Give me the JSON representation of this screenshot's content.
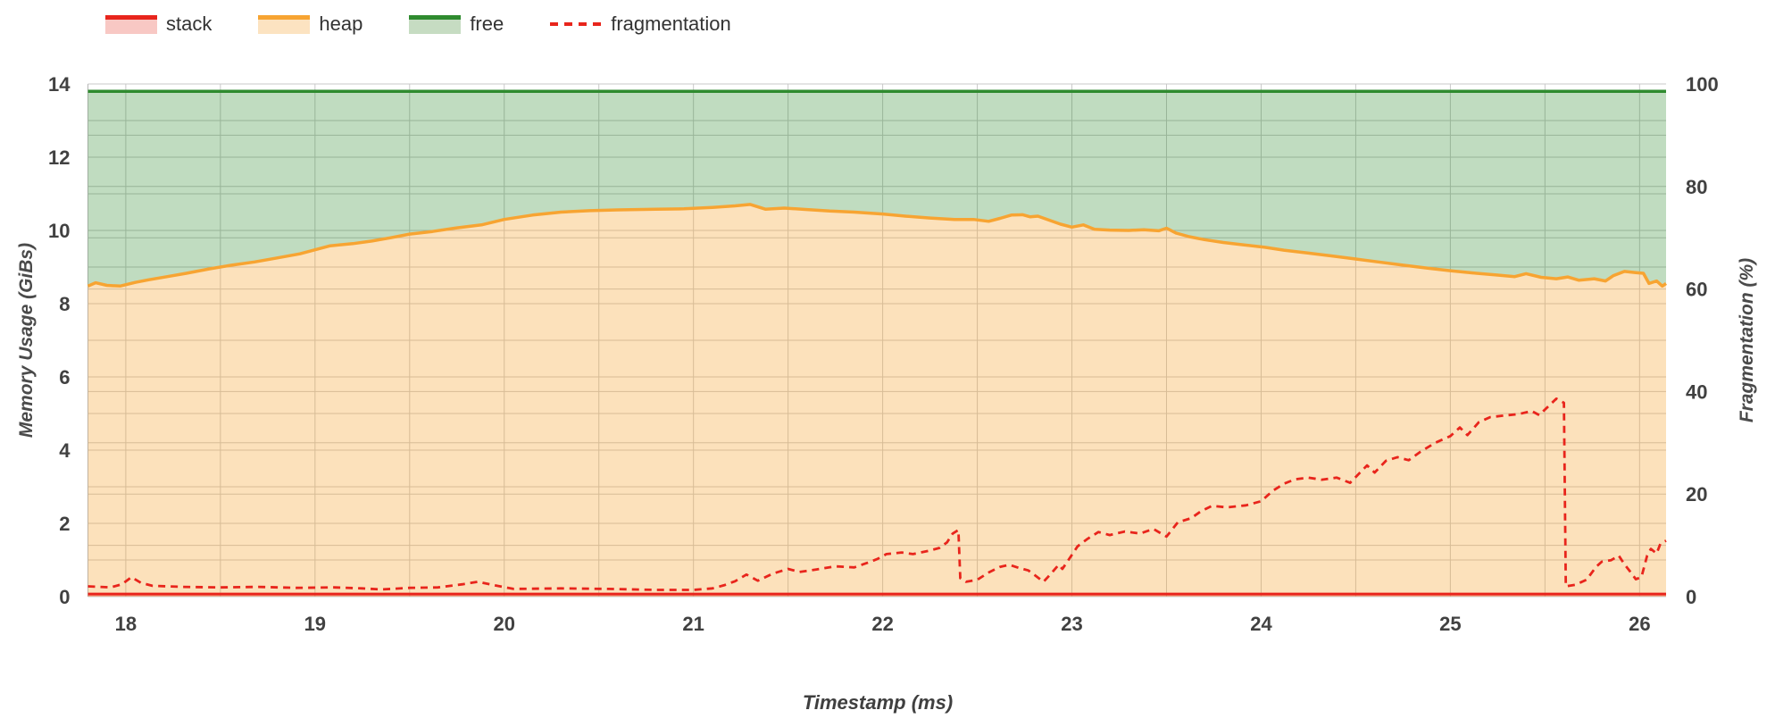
{
  "legend": {
    "items": [
      {
        "label": "stack",
        "swatch": "area",
        "color": "#e8251c",
        "fill": "#f8c8c4"
      },
      {
        "label": "heap",
        "swatch": "area",
        "color": "#f7a432",
        "fill": "#fce3c1"
      },
      {
        "label": "free",
        "swatch": "area",
        "color": "#2f8b2f",
        "fill": "#c6dcc2"
      },
      {
        "label": "fragmentation",
        "swatch": "dashed",
        "color": "#e8251c"
      }
    ]
  },
  "chart_data": {
    "type": "area",
    "xlabel": "Timestamp (ms)",
    "ylabel_left": "Memory Usage (GiBs)",
    "ylabel_right": "Fragmentation (%)",
    "x_range": [
      17.8,
      26.14
    ],
    "x_ticks": [
      18,
      19,
      20,
      21,
      22,
      23,
      24,
      25,
      26
    ],
    "x_minor_step": 0.5,
    "y_left_range": [
      0,
      14
    ],
    "y_left_ticks": [
      0,
      2,
      4,
      6,
      8,
      10,
      12,
      14
    ],
    "y_left_minor_step": 1,
    "y_right_range": [
      0,
      100
    ],
    "y_right_ticks": [
      0,
      20,
      40,
      60,
      80,
      100
    ],
    "y_right_minor_step": 10,
    "grid": true,
    "grid_color": "#c8c8c8",
    "legend_position": "top-left",
    "background": "#ffffff",
    "series": [
      {
        "name": "stack",
        "axis": "left",
        "style": "solid-area",
        "color": "#e8251c",
        "fill": "rgba(232,37,28,0.22)",
        "points": [
          [
            17.8,
            0.07
          ],
          [
            26.14,
            0.07
          ]
        ]
      },
      {
        "name": "heap",
        "axis": "left",
        "style": "solid-area",
        "color": "#f7a432",
        "fill": "rgba(247,164,50,0.33)",
        "points": [
          [
            17.8,
            8.48
          ],
          [
            17.84,
            8.57
          ],
          [
            17.9,
            8.5
          ],
          [
            17.97,
            8.48
          ],
          [
            18.05,
            8.58
          ],
          [
            18.12,
            8.65
          ],
          [
            18.22,
            8.74
          ],
          [
            18.32,
            8.83
          ],
          [
            18.44,
            8.95
          ],
          [
            18.56,
            9.05
          ],
          [
            18.68,
            9.14
          ],
          [
            18.8,
            9.25
          ],
          [
            18.92,
            9.36
          ],
          [
            19.0,
            9.47
          ],
          [
            19.08,
            9.58
          ],
          [
            19.2,
            9.64
          ],
          [
            19.3,
            9.71
          ],
          [
            19.4,
            9.8
          ],
          [
            19.5,
            9.9
          ],
          [
            19.62,
            9.97
          ],
          [
            19.75,
            10.07
          ],
          [
            19.88,
            10.15
          ],
          [
            20.0,
            10.3
          ],
          [
            20.15,
            10.42
          ],
          [
            20.3,
            10.5
          ],
          [
            20.45,
            10.54
          ],
          [
            20.6,
            10.56
          ],
          [
            20.8,
            10.58
          ],
          [
            20.95,
            10.59
          ],
          [
            21.1,
            10.63
          ],
          [
            21.22,
            10.67
          ],
          [
            21.3,
            10.71
          ],
          [
            21.38,
            10.58
          ],
          [
            21.48,
            10.61
          ],
          [
            21.6,
            10.57
          ],
          [
            21.72,
            10.53
          ],
          [
            21.85,
            10.5
          ],
          [
            22.0,
            10.45
          ],
          [
            22.12,
            10.39
          ],
          [
            22.25,
            10.34
          ],
          [
            22.38,
            10.3
          ],
          [
            22.48,
            10.3
          ],
          [
            22.56,
            10.25
          ],
          [
            22.62,
            10.33
          ],
          [
            22.68,
            10.42
          ],
          [
            22.74,
            10.43
          ],
          [
            22.78,
            10.37
          ],
          [
            22.82,
            10.39
          ],
          [
            22.88,
            10.28
          ],
          [
            22.94,
            10.17
          ],
          [
            23.0,
            10.09
          ],
          [
            23.06,
            10.15
          ],
          [
            23.12,
            10.03
          ],
          [
            23.2,
            10.01
          ],
          [
            23.3,
            10.0
          ],
          [
            23.38,
            10.02
          ],
          [
            23.46,
            9.99
          ],
          [
            23.5,
            10.06
          ],
          [
            23.55,
            9.93
          ],
          [
            23.62,
            9.83
          ],
          [
            23.7,
            9.75
          ],
          [
            23.8,
            9.67
          ],
          [
            23.9,
            9.61
          ],
          [
            24.02,
            9.54
          ],
          [
            24.12,
            9.46
          ],
          [
            24.25,
            9.38
          ],
          [
            24.38,
            9.3
          ],
          [
            24.5,
            9.22
          ],
          [
            24.62,
            9.14
          ],
          [
            24.75,
            9.05
          ],
          [
            24.88,
            8.97
          ],
          [
            25.0,
            8.9
          ],
          [
            25.12,
            8.84
          ],
          [
            25.25,
            8.78
          ],
          [
            25.34,
            8.74
          ],
          [
            25.4,
            8.82
          ],
          [
            25.48,
            8.72
          ],
          [
            25.56,
            8.68
          ],
          [
            25.62,
            8.73
          ],
          [
            25.68,
            8.64
          ],
          [
            25.76,
            8.68
          ],
          [
            25.82,
            8.62
          ],
          [
            25.86,
            8.76
          ],
          [
            25.92,
            8.88
          ],
          [
            25.98,
            8.85
          ],
          [
            26.02,
            8.83
          ],
          [
            26.05,
            8.55
          ],
          [
            26.09,
            8.62
          ],
          [
            26.12,
            8.48
          ],
          [
            26.14,
            8.55
          ]
        ]
      },
      {
        "name": "free",
        "axis": "left",
        "style": "solid-area",
        "color": "#2f8b2f",
        "fill": "rgba(47,139,47,0.30)",
        "points": [
          [
            17.8,
            13.8
          ],
          [
            26.14,
            13.8
          ]
        ]
      },
      {
        "name": "fragmentation",
        "axis": "right",
        "style": "dashed-line",
        "color": "#e8251c",
        "points": [
          [
            17.8,
            2.0
          ],
          [
            17.92,
            1.8
          ],
          [
            17.98,
            2.4
          ],
          [
            18.03,
            3.8
          ],
          [
            18.08,
            2.7
          ],
          [
            18.14,
            2.1
          ],
          [
            18.3,
            1.9
          ],
          [
            18.5,
            1.8
          ],
          [
            18.7,
            1.9
          ],
          [
            18.9,
            1.7
          ],
          [
            19.1,
            1.8
          ],
          [
            19.25,
            1.6
          ],
          [
            19.35,
            1.4
          ],
          [
            19.5,
            1.7
          ],
          [
            19.65,
            1.8
          ],
          [
            19.78,
            2.4
          ],
          [
            19.86,
            2.9
          ],
          [
            19.95,
            2.2
          ],
          [
            20.05,
            1.5
          ],
          [
            20.3,
            1.6
          ],
          [
            20.55,
            1.5
          ],
          [
            20.8,
            1.3
          ],
          [
            21.0,
            1.3
          ],
          [
            21.1,
            1.6
          ],
          [
            21.16,
            2.2
          ],
          [
            21.22,
            3.0
          ],
          [
            21.28,
            4.3
          ],
          [
            21.34,
            3.1
          ],
          [
            21.42,
            4.5
          ],
          [
            21.5,
            5.4
          ],
          [
            21.56,
            4.8
          ],
          [
            21.65,
            5.3
          ],
          [
            21.75,
            5.9
          ],
          [
            21.85,
            5.7
          ],
          [
            21.92,
            6.6
          ],
          [
            21.97,
            7.3
          ],
          [
            22.02,
            8.3
          ],
          [
            22.1,
            8.6
          ],
          [
            22.16,
            8.3
          ],
          [
            22.24,
            8.9
          ],
          [
            22.3,
            9.5
          ],
          [
            22.34,
            10.6
          ],
          [
            22.37,
            12.3
          ],
          [
            22.4,
            13.0
          ],
          [
            22.41,
            3.6
          ],
          [
            22.44,
            2.9
          ],
          [
            22.5,
            3.3
          ],
          [
            22.56,
            4.7
          ],
          [
            22.62,
            5.8
          ],
          [
            22.67,
            6.2
          ],
          [
            22.72,
            5.6
          ],
          [
            22.77,
            5.1
          ],
          [
            22.81,
            4.0
          ],
          [
            22.85,
            2.9
          ],
          [
            22.89,
            4.5
          ],
          [
            22.93,
            6.2
          ],
          [
            22.95,
            5.4
          ],
          [
            22.99,
            7.6
          ],
          [
            23.03,
            9.8
          ],
          [
            23.08,
            11.2
          ],
          [
            23.14,
            12.6
          ],
          [
            23.2,
            12.0
          ],
          [
            23.28,
            12.7
          ],
          [
            23.36,
            12.3
          ],
          [
            23.43,
            13.2
          ],
          [
            23.5,
            11.7
          ],
          [
            23.56,
            14.5
          ],
          [
            23.63,
            15.3
          ],
          [
            23.68,
            16.6
          ],
          [
            23.74,
            17.7
          ],
          [
            23.82,
            17.4
          ],
          [
            23.92,
            17.8
          ],
          [
            24.0,
            18.6
          ],
          [
            24.06,
            20.6
          ],
          [
            24.12,
            22.0
          ],
          [
            24.18,
            22.9
          ],
          [
            24.25,
            23.2
          ],
          [
            24.32,
            22.8
          ],
          [
            24.4,
            23.2
          ],
          [
            24.47,
            22.2
          ],
          [
            24.52,
            24.1
          ],
          [
            24.56,
            25.6
          ],
          [
            24.6,
            24.2
          ],
          [
            24.66,
            26.5
          ],
          [
            24.72,
            27.2
          ],
          [
            24.78,
            26.6
          ],
          [
            24.84,
            28.2
          ],
          [
            24.92,
            30.0
          ],
          [
            25.0,
            31.3
          ],
          [
            25.05,
            33.0
          ],
          [
            25.09,
            31.5
          ],
          [
            25.15,
            34.0
          ],
          [
            25.21,
            35.0
          ],
          [
            25.28,
            35.3
          ],
          [
            25.36,
            35.6
          ],
          [
            25.43,
            36.2
          ],
          [
            25.47,
            35.4
          ],
          [
            25.52,
            37.2
          ],
          [
            25.56,
            38.6
          ],
          [
            25.6,
            37.8
          ],
          [
            25.61,
            2.0
          ],
          [
            25.66,
            2.3
          ],
          [
            25.72,
            3.3
          ],
          [
            25.77,
            5.8
          ],
          [
            25.8,
            6.8
          ],
          [
            25.85,
            7.1
          ],
          [
            25.89,
            8.0
          ],
          [
            25.92,
            6.3
          ],
          [
            25.95,
            4.9
          ],
          [
            25.98,
            3.4
          ],
          [
            26.01,
            3.8
          ],
          [
            26.04,
            8.0
          ],
          [
            26.06,
            9.3
          ],
          [
            26.09,
            8.4
          ],
          [
            26.11,
            10.3
          ],
          [
            26.14,
            10.9
          ]
        ]
      }
    ]
  }
}
